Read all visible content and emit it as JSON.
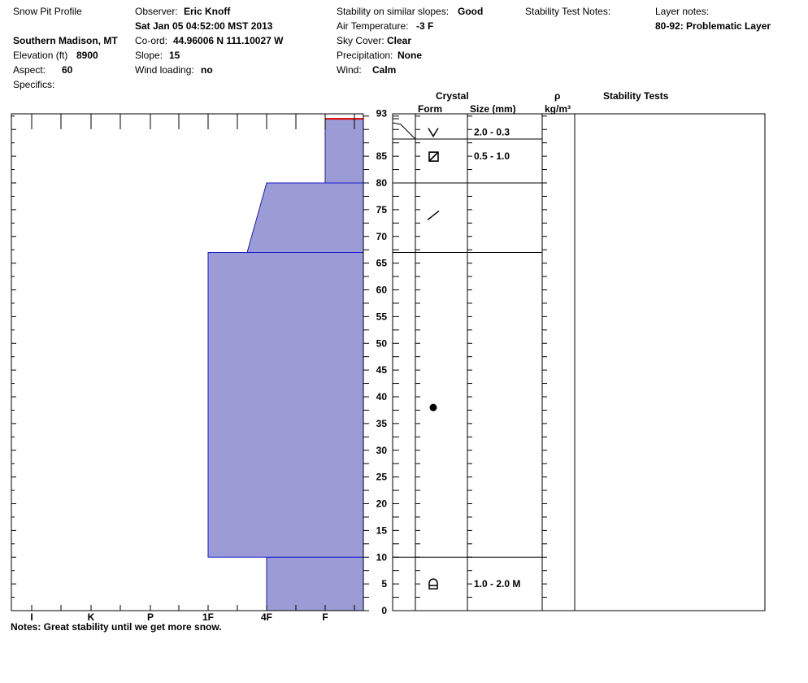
{
  "header": {
    "title": "Snow Pit Profile",
    "location": "Southern Madison, MT",
    "elevation_label": "Elevation (ft)",
    "elevation_value": "8900",
    "aspect_label": "Aspect:",
    "aspect_value": "60",
    "specifics_label": "Specifics:",
    "observer_label": "Observer:",
    "observer_value": "Eric Knoff",
    "datetime": "Sat Jan 05 04:52:00 MST 2013",
    "coord_label": "Co-ord:",
    "coord_value": "44.96006 N 111.10027 W",
    "slope_label": "Slope:",
    "slope_value": "15",
    "wind_loading_label": "Wind loading:",
    "wind_loading_value": "no",
    "stability_label": "Stability on similar slopes:",
    "stability_value": "Good",
    "air_temp_label": "Air Temperature:",
    "air_temp_value": "-3 F",
    "sky_label": "Sky Cover:",
    "sky_value": "Clear",
    "precip_label": "Precipitation:",
    "precip_value": "None",
    "wind_label": "Wind:",
    "wind_value": "Calm",
    "stability_notes_label": "Stability Test Notes:",
    "layer_notes_label": "Layer notes:",
    "layer_notes_value": "80-92: Problematic Layer"
  },
  "table_headers": {
    "crystal": "Crystal",
    "form": "Form",
    "size": "Size (mm)",
    "rho": "ρ",
    "density_unit": "kg/m³",
    "stability_tests": "Stability Tests"
  },
  "notes": "Notes:  Great stability until we get more snow.",
  "colors": {
    "fill": "#9b9bd6",
    "outline": "#1a1acc",
    "marker": "#dd0000"
  },
  "chart_data": {
    "type": "area",
    "title": "",
    "xlabel": "",
    "ylabel": "",
    "ylim": [
      0,
      93
    ],
    "y_ticks": [
      0,
      5,
      10,
      15,
      20,
      25,
      30,
      35,
      40,
      45,
      50,
      55,
      60,
      65,
      70,
      75,
      80,
      85,
      93
    ],
    "x_ticks": [
      "I",
      "K",
      "P",
      "1F",
      "4F",
      "F"
    ],
    "hardness_profile": [
      {
        "top": 10,
        "bottom": 0,
        "hardness_top": "4F",
        "hardness_bottom": "4F"
      },
      {
        "top": 67,
        "bottom": 10,
        "hardness_top": "1F",
        "hardness_bottom": "1F"
      },
      {
        "top": 80,
        "bottom": 67,
        "hardness_top": "4F",
        "hardness_bottom": "1F-4F"
      },
      {
        "top": 92,
        "bottom": 80,
        "hardness_top": "F",
        "hardness_bottom": "F"
      }
    ],
    "marker_depth": 92,
    "layer_boundaries": [
      10,
      67,
      80,
      88.5
    ],
    "crystals": [
      {
        "depth": 91,
        "form": "surface-hoar",
        "size": "2.0 - 0.3"
      },
      {
        "depth": 85,
        "form": "faceted",
        "size": "0.5 - 1.0"
      },
      {
        "depth": 74,
        "form": "decomposed",
        "size": ""
      },
      {
        "depth": 38,
        "form": "rounded",
        "size": ""
      },
      {
        "depth": 5,
        "form": "depth-hoar",
        "size": "1.0 - 2.0 M"
      }
    ]
  }
}
